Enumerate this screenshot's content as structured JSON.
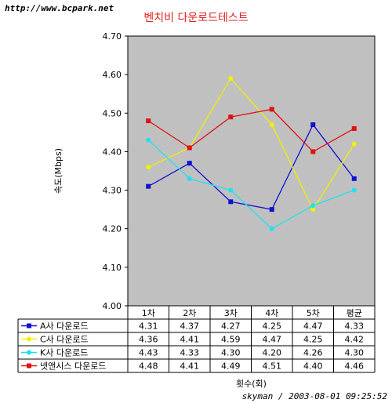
{
  "watermark": "http://www.bcpark.net",
  "footer": "skyman / 2003-08-01 09:25:52",
  "chart_data": {
    "type": "line",
    "title": "벤치비 다운로드테스트",
    "ylabel": "속도(Mbps)",
    "xlabel": "횟수(회)",
    "ylim": [
      4.0,
      4.7
    ],
    "yticks": [
      "4.70",
      "4.60",
      "4.50",
      "4.40",
      "4.30",
      "4.20",
      "4.10",
      "4.00"
    ],
    "categories": [
      "1차",
      "2차",
      "3차",
      "4차",
      "5차",
      "평균"
    ],
    "grid": false,
    "legend": "data-table",
    "series": [
      {
        "name": "A사 다운로드",
        "color": "#1010d0",
        "marker": "square",
        "values": [
          4.31,
          4.37,
          4.27,
          4.25,
          4.47,
          4.33
        ],
        "labels": [
          "4.31",
          "4.37",
          "4.27",
          "4.25",
          "4.47",
          "4.33"
        ]
      },
      {
        "name": "C사 다운로드",
        "color": "#f0f000",
        "marker": "circle",
        "values": [
          4.36,
          4.41,
          4.59,
          4.47,
          4.25,
          4.42
        ],
        "labels": [
          "4.36",
          "4.41",
          "4.59",
          "4.47",
          "4.25",
          "4.42"
        ]
      },
      {
        "name": "K사 다운로드",
        "color": "#20e0f0",
        "marker": "circle",
        "values": [
          4.43,
          4.33,
          4.3,
          4.2,
          4.26,
          4.3
        ],
        "labels": [
          "4.43",
          "4.33",
          "4.30",
          "4.20",
          "4.26",
          "4.30"
        ]
      },
      {
        "name": "넷앤시스 다운로드",
        "color": "#e01010",
        "marker": "square",
        "values": [
          4.48,
          4.41,
          4.49,
          4.51,
          4.4,
          4.46
        ],
        "labels": [
          "4.48",
          "4.41",
          "4.49",
          "4.51",
          "4.40",
          "4.46"
        ]
      }
    ]
  }
}
